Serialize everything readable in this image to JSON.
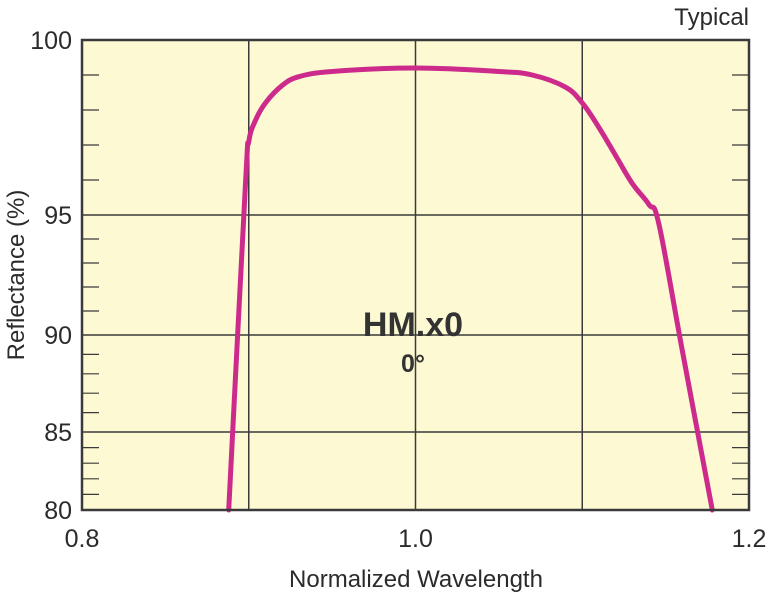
{
  "chart_data": {
    "type": "line",
    "title": "",
    "xlabel": "Normalized Wavelength",
    "ylabel": "Reflectance (%)",
    "note": "Typical",
    "annotation_main": "HM.x0",
    "annotation_sub": "0°",
    "xlim": [
      0.8,
      1.2
    ],
    "ylim": [
      80,
      100
    ],
    "y_scale": "nonlinear (expanded toward 100)",
    "x_ticks": [
      "0.8",
      "1.0",
      "1.2"
    ],
    "y_ticks": [
      "80",
      "85",
      "90",
      "95",
      "100"
    ],
    "grid": true,
    "background_color": "#fdf9d2",
    "line_color": "#cc2b8c",
    "series": [
      {
        "x": [
          0.888,
          0.898,
          0.9,
          0.904,
          0.91,
          0.92,
          0.93,
          0.95,
          1.0,
          1.05,
          1.07,
          1.09,
          1.1,
          1.11,
          1.12,
          1.13,
          1.14,
          1.146,
          1.16,
          1.178
        ],
        "y": [
          80.0,
          95.85,
          97.1,
          97.7,
          98.2,
          98.7,
          98.95,
          99.1,
          99.2,
          99.1,
          99.0,
          98.65,
          98.2,
          97.5,
          96.7,
          95.9,
          95.3,
          94.6,
          89.2,
          80.0
        ]
      }
    ]
  }
}
